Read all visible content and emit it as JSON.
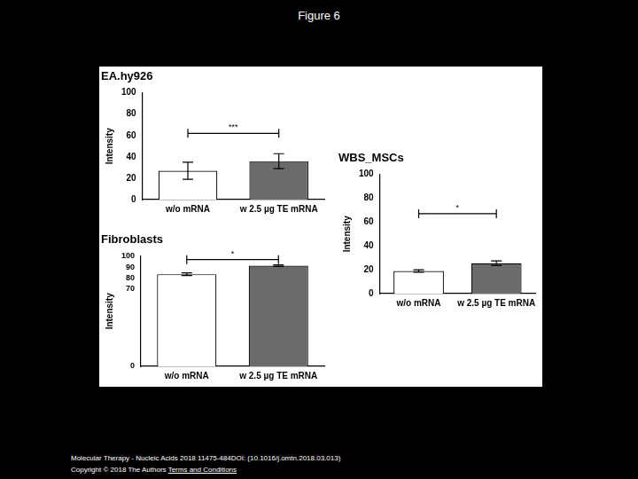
{
  "title": "Figure 6",
  "chart_data": [
    {
      "type": "bar",
      "title": "EA.hy926",
      "y_label": "Intensity",
      "categories": [
        "w/o mRNA",
        "w 2.5 µg TE mRNA"
      ],
      "values": [
        27,
        36
      ],
      "errors": [
        8,
        7
      ],
      "colors": [
        "#ffffff",
        "#6b6b6b"
      ],
      "ylim": [
        0,
        100
      ],
      "yticks": [
        0,
        20,
        40,
        60,
        80,
        100
      ],
      "grid": false,
      "significance": {
        "label": "***",
        "y": 62
      }
    },
    {
      "type": "bar",
      "title": "WBS_MSCs",
      "y_label": "Intensity",
      "categories": [
        "w/o mRNA",
        "w 2.5 µg TE mRNA"
      ],
      "values": [
        19,
        25.5
      ],
      "errors": [
        1,
        2
      ],
      "colors": [
        "#ffffff",
        "#6b6b6b"
      ],
      "ylim": [
        0,
        100
      ],
      "yticks": [
        0,
        20,
        40,
        60,
        80,
        100
      ],
      "grid": false,
      "significance": {
        "label": "*",
        "y": 67
      }
    },
    {
      "type": "bar",
      "title": "Fibroblasts",
      "y_label": "Intensity",
      "categories": [
        "w/o mRNA",
        "w 2.5 µg TE mRNA"
      ],
      "values": [
        83.5,
        91.2
      ],
      "errors": [
        1.2,
        0.7
      ],
      "colors": [
        "#ffffff",
        "#6b6b6b"
      ],
      "ylim": [
        0,
        100
      ],
      "yticks": [
        0,
        70,
        80,
        90,
        100
      ],
      "grid": false,
      "significance": {
        "label": "*",
        "y": 96.7
      }
    }
  ],
  "footer": {
    "citation": "Molecular Therapy - Nucleic Acids 2018 11475-484DOI: (10.1016/j.omtn.2018.03.013)",
    "copyright": "Copyright © 2018 The Authors",
    "link": "Terms and Conditions"
  }
}
